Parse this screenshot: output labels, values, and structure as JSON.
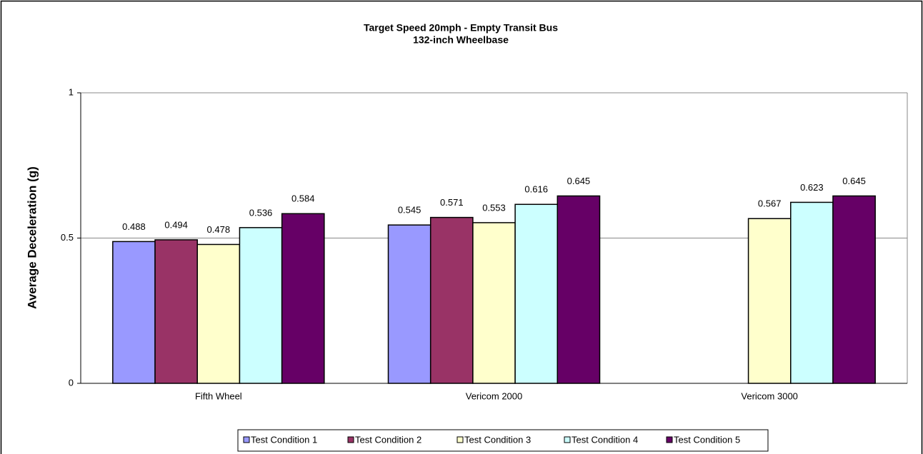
{
  "chart_data": {
    "type": "bar",
    "title": "Target Speed 20mph - Empty Transit Bus",
    "subtitle": "132-inch Wheelbase",
    "y_label": "Average Deceleration (g)",
    "categories": [
      "Fifth Wheel",
      "Vericom 2000",
      "Vericom 3000"
    ],
    "series": [
      {
        "name": "Test Condition 1",
        "color": "#9999ff",
        "values": [
          0.488,
          0.545,
          null
        ]
      },
      {
        "name": "Test Condition 2",
        "color": "#993366",
        "values": [
          0.494,
          0.571,
          null
        ]
      },
      {
        "name": "Test Condition 3",
        "color": "#ffffcc",
        "values": [
          0.478,
          0.553,
          0.567
        ]
      },
      {
        "name": "Test Condition 4",
        "color": "#ccffff",
        "values": [
          0.536,
          0.616,
          0.623
        ]
      },
      {
        "name": "Test Condition 5",
        "color": "#660066",
        "values": [
          0.584,
          0.645,
          0.645
        ]
      }
    ],
    "ylim": [
      0,
      1
    ],
    "yticks": [
      0,
      0.5,
      1
    ],
    "grid": true,
    "legend": "bottom"
  }
}
